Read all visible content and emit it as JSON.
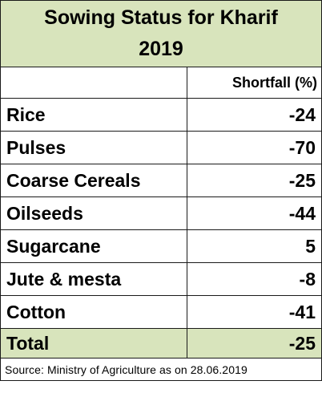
{
  "chart_data": {
    "type": "table",
    "title_line1": "Sowing Status for Kharif",
    "title_line2": "2019",
    "columns": [
      "",
      "Shortfall (%)"
    ],
    "rows": [
      {
        "crop": "Rice",
        "value": "-24"
      },
      {
        "crop": "Pulses",
        "value": "-70"
      },
      {
        "crop": "Coarse Cereals",
        "value": "-25"
      },
      {
        "crop": "Oilseeds",
        "value": "-44"
      },
      {
        "crop": "Sugarcane",
        "value": "5"
      },
      {
        "crop": "Jute & mesta",
        "value": "-8"
      },
      {
        "crop": "Cotton",
        "value": "-41"
      }
    ],
    "total": {
      "label": "Total",
      "value": "-25"
    },
    "source": "Source: Ministry of Agriculture as on 28.06.2019"
  },
  "colors": {
    "header_fill": "#d8e4bc",
    "border": "#1a1a1a"
  }
}
